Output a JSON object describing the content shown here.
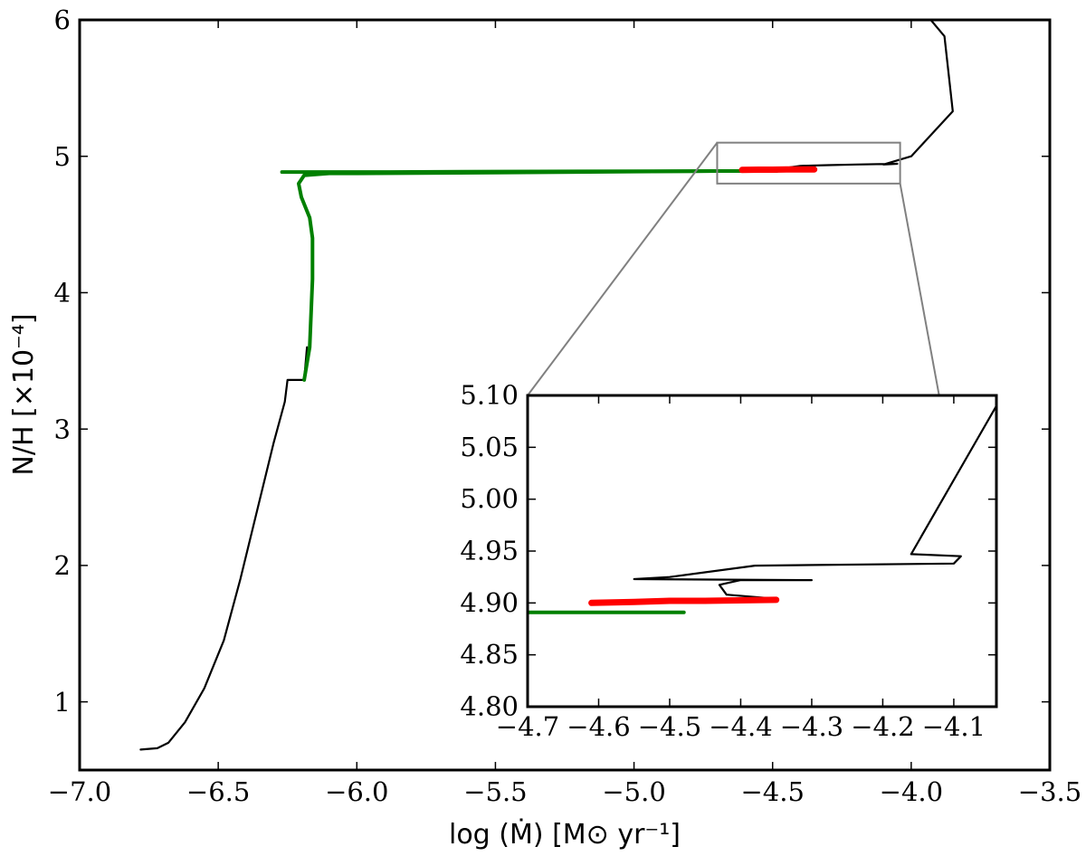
{
  "chart_data": [
    {
      "type": "line",
      "title": "",
      "xlabel": "log (Ṁ) [M⊙ yr⁻¹]",
      "ylabel": "N/H [×10⁻⁴]",
      "xlim": [
        -7.0,
        -3.5
      ],
      "ylim": [
        0.5,
        6.0
      ],
      "xticks": [
        -7.0,
        -6.5,
        -6.0,
        -5.5,
        -5.0,
        -4.5,
        -4.0,
        -3.5
      ],
      "xtick_labels": [
        "−7.0",
        "−6.5",
        "−6.0",
        "−5.5",
        "−5.0",
        "−4.5",
        "−4.0",
        "−3.5"
      ],
      "yticks": [
        1,
        2,
        3,
        4,
        5,
        6
      ],
      "ytick_labels": [
        "1",
        "2",
        "3",
        "4",
        "5",
        "6"
      ],
      "grid": false,
      "legend": "none",
      "series": [
        {
          "color": "#000000",
          "points": [
            [
              -6.78,
              0.65
            ],
            [
              -6.72,
              0.66
            ],
            [
              -6.68,
              0.7
            ],
            [
              -6.62,
              0.85
            ],
            [
              -6.55,
              1.1
            ],
            [
              -6.48,
              1.45
            ],
            [
              -6.42,
              1.9
            ],
            [
              -6.36,
              2.4
            ],
            [
              -6.3,
              2.9
            ],
            [
              -6.26,
              3.2
            ],
            [
              -6.25,
              3.36
            ],
            [
              -6.19,
              3.36
            ],
            [
              -6.18,
              3.6
            ]
          ]
        },
        {
          "color": "#000000",
          "points": [
            [
              -4.47,
              4.91
            ],
            [
              -4.4,
              4.93
            ],
            [
              -4.3,
              4.935
            ],
            [
              -4.2,
              4.94
            ],
            [
              -4.05,
              4.945
            ],
            [
              -4.1,
              4.94
            ],
            [
              -4.0,
              5.0
            ],
            [
              -3.85,
              5.33
            ],
            [
              -3.88,
              5.88
            ],
            [
              -3.95,
              6.05
            ]
          ]
        },
        {
          "color": "#008000",
          "points": [
            [
              -6.19,
              3.36
            ],
            [
              -6.17,
              3.6
            ],
            [
              -6.16,
              4.1
            ],
            [
              -6.16,
              4.4
            ],
            [
              -6.17,
              4.55
            ],
            [
              -6.2,
              4.7
            ],
            [
              -6.21,
              4.8
            ],
            [
              -6.19,
              4.86
            ],
            [
              -6.1,
              4.875
            ],
            [
              -6.0,
              4.875
            ],
            [
              -5.5,
              4.88
            ],
            [
              -5.0,
              4.888
            ],
            [
              -4.7,
              4.892
            ],
            [
              -4.485,
              4.892
            ]
          ]
        },
        {
          "color": "#008000",
          "points": [
            [
              -6.27,
              4.885
            ],
            [
              -5.88,
              4.885
            ],
            [
              -5.5,
              4.888
            ],
            [
              -5.0,
              4.89
            ],
            [
              -4.7,
              4.892
            ]
          ]
        },
        {
          "color": "#ff0000",
          "points": [
            [
              -4.61,
              4.9
            ],
            [
              -4.55,
              4.902
            ],
            [
              -4.5,
              4.902
            ],
            [
              -4.45,
              4.903
            ],
            [
              -4.35,
              4.903
            ]
          ]
        }
      ],
      "zoom_box": {
        "xlim": [
          -4.7,
          -4.04
        ],
        "ylim": [
          4.8,
          5.1
        ]
      }
    },
    {
      "type": "line",
      "title": "",
      "xlabel": "",
      "ylabel": "",
      "xlim": [
        -4.7,
        -4.04
      ],
      "ylim": [
        4.8,
        5.1
      ],
      "xticks": [
        -4.7,
        -4.6,
        -4.5,
        -4.4,
        -4.3,
        -4.2,
        -4.1
      ],
      "xtick_labels": [
        "−4.7",
        "−4.6",
        "−4.5",
        "−4.4",
        "−4.3",
        "−4.2",
        "−4.1"
      ],
      "yticks": [
        4.8,
        4.85,
        4.9,
        4.95,
        5.0,
        5.05,
        5.1
      ],
      "ytick_labels": [
        "4.80",
        "4.85",
        "4.90",
        "4.95",
        "5.00",
        "5.05",
        "5.10"
      ],
      "grid": false,
      "legend": "none",
      "series": [
        {
          "color": "#000000",
          "points": [
            [
              -4.04,
              5.09
            ],
            [
              -4.16,
              4.947
            ],
            [
              -4.09,
              4.945
            ],
            [
              -4.1,
              4.938
            ],
            [
              -4.38,
              4.936
            ],
            [
              -4.5,
              4.925
            ],
            [
              -4.55,
              4.923
            ],
            [
              -4.3,
              4.922
            ],
            [
              -4.4,
              4.922
            ],
            [
              -4.43,
              4.9175
            ],
            [
              -4.42,
              4.908
            ],
            [
              -4.35,
              4.904
            ]
          ]
        },
        {
          "color": "#008000",
          "points": [
            [
              -4.7,
              4.891
            ],
            [
              -4.5,
              4.891
            ],
            [
              -4.48,
              4.891
            ]
          ]
        },
        {
          "color": "#ff0000",
          "points": [
            [
              -4.61,
              4.9
            ],
            [
              -4.55,
              4.901
            ],
            [
              -4.5,
              4.902
            ],
            [
              -4.45,
              4.902
            ],
            [
              -4.35,
              4.903
            ]
          ]
        }
      ]
    }
  ]
}
